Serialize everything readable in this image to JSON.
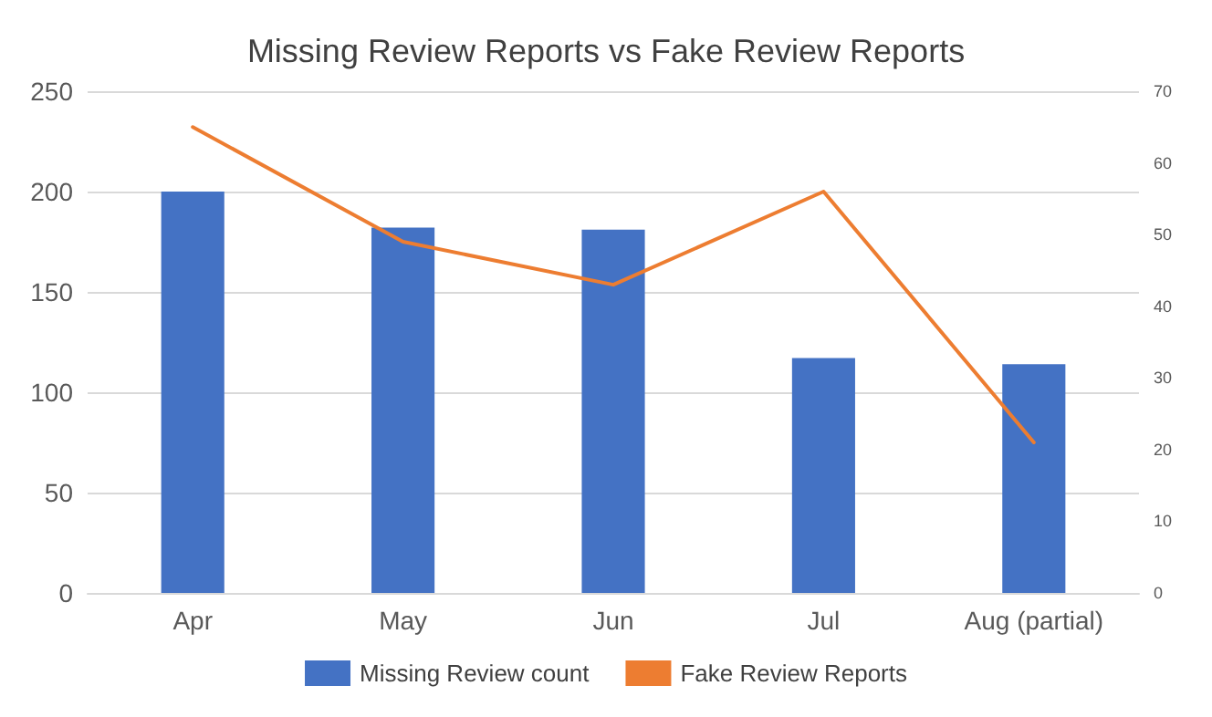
{
  "chart_data": {
    "type": "bar",
    "title": "Missing Review Reports vs Fake Review Reports",
    "categories": [
      "Apr",
      "May",
      "Jun",
      "Jul",
      "Aug (partial)"
    ],
    "series": [
      {
        "name": "Missing Review count",
        "color": "#4472c4",
        "values": [
          200,
          182,
          181,
          117,
          114
        ]
      },
      {
        "name": "Fake Review Reports",
        "type": "line",
        "axis": "y2",
        "color": "#ed7d31",
        "values": [
          65,
          49,
          43,
          56,
          21
        ]
      }
    ],
    "ylim": [
      0,
      250
    ],
    "yticks": [
      0,
      50,
      100,
      150,
      200,
      250
    ],
    "y2lim": [
      0,
      70
    ],
    "y2ticks": [
      0,
      10,
      20,
      30,
      40,
      50,
      60,
      70
    ],
    "grid": "y",
    "legend": "bottom",
    "marker": "none",
    "line_style": "solid"
  }
}
